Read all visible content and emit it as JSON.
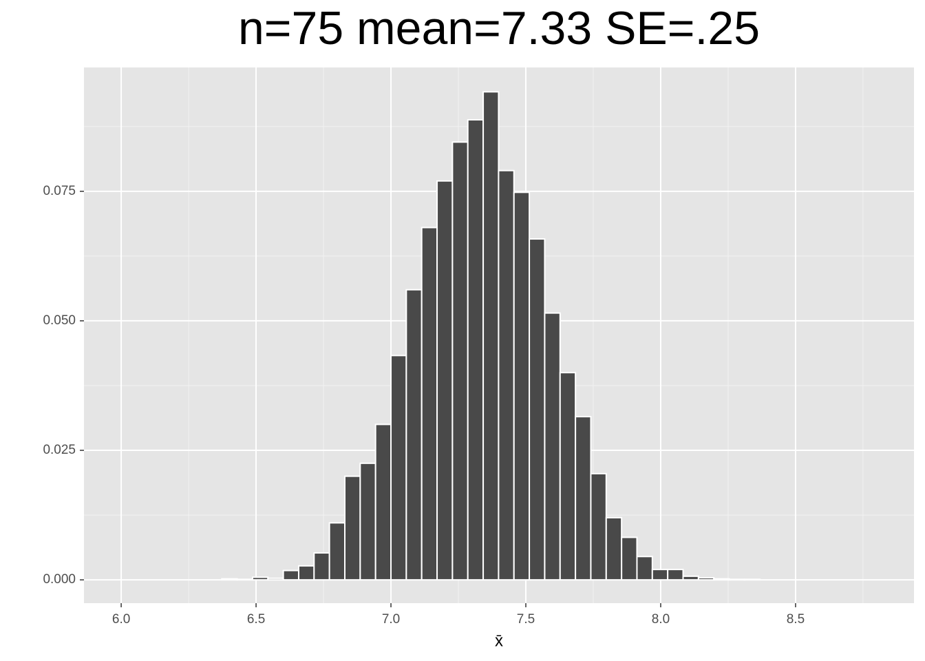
{
  "chart_data": {
    "type": "histogram",
    "title": "n=75   mean=7.33   SE=.25",
    "x_label": "x̄",
    "bins": [
      6.031,
      6.088,
      6.145,
      6.202,
      6.259,
      6.316,
      6.373,
      6.43,
      6.487,
      6.544,
      6.601,
      6.658,
      6.715,
      6.772,
      6.829,
      6.886,
      6.943,
      7.0,
      7.057,
      7.114,
      7.171,
      7.228,
      7.285,
      7.342,
      7.399,
      7.456,
      7.513,
      7.57,
      7.627,
      7.684,
      7.741,
      7.798,
      7.855,
      7.912,
      7.969,
      8.026,
      8.083,
      8.14,
      8.197,
      8.254,
      8.311,
      8.368
    ],
    "values": [
      0,
      0,
      0,
      0,
      0,
      0,
      0.0002,
      0.0001,
      0.0005,
      0.0003,
      0.0018,
      0.0027,
      0.0052,
      0.011,
      0.02,
      0.0225,
      0.03,
      0.0433,
      0.056,
      0.068,
      0.077,
      0.0845,
      0.0888,
      0.0942,
      0.079,
      0.0748,
      0.0658,
      0.0515,
      0.04,
      0.0315,
      0.0205,
      0.012,
      0.0082,
      0.0045,
      0.002,
      0.002,
      0.0007,
      0.0004,
      0.0002,
      0.0001,
      0.0001
    ],
    "color": "#494949",
    "xlim": [
      5.862,
      8.939
    ],
    "ylim": [
      -0.0045,
      0.0989
    ],
    "xticks": [
      {
        "value": 6,
        "label": "6.0"
      },
      6.5,
      {
        "value": 7,
        "label": "7.0"
      },
      7.5,
      {
        "value": 8,
        "label": "8.0"
      },
      8.5
    ],
    "yticks": [
      {
        "value": 0,
        "label": "0.000"
      },
      0.025,
      {
        "value": 0.05,
        "label": "0.050"
      },
      0.075
    ],
    "grid": true
  }
}
